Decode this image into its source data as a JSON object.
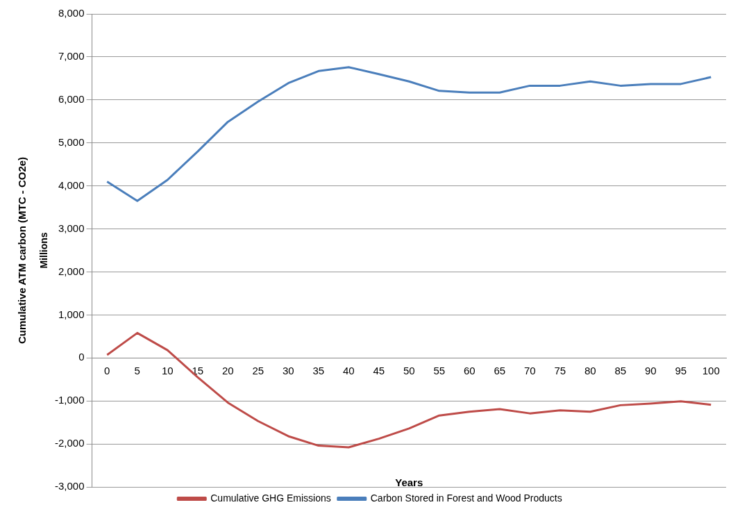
{
  "chart_data": {
    "type": "line",
    "xlabel": "Years",
    "ylabel": "Cumulative ATM carbon (MTC - CO2e)",
    "annotations": [
      "Millions"
    ],
    "categories": [
      "0",
      "5",
      "10",
      "15",
      "20",
      "25",
      "30",
      "35",
      "40",
      "45",
      "50",
      "55",
      "60",
      "65",
      "70",
      "75",
      "80",
      "85",
      "90",
      "95",
      "100"
    ],
    "series": [
      {
        "name": "Cumulative GHG Emissions",
        "color": "#be4b48",
        "values": [
          70,
          580,
          180,
          -450,
          -1040,
          -1470,
          -1820,
          -2040,
          -2080,
          -1880,
          -1640,
          -1340,
          -1250,
          -1190,
          -1290,
          -1220,
          -1250,
          -1100,
          -1060,
          -1010,
          -1090
        ]
      },
      {
        "name": "Carbon Stored in Forest and Wood Products",
        "color": "#4a7ebb",
        "values": [
          4100,
          3650,
          4140,
          4800,
          5490,
          5960,
          6390,
          6670,
          6760,
          6600,
          6430,
          6210,
          6170,
          6170,
          6330,
          6330,
          6430,
          6330,
          6370,
          6370,
          6530
        ]
      }
    ],
    "ylim": [
      -3000,
      8000
    ],
    "yticks": [
      {
        "value": -3000,
        "label": "-3,000"
      },
      {
        "value": -2000,
        "label": "-2,000"
      },
      {
        "value": -1000,
        "label": "-1,000"
      },
      0,
      {
        "value": 1000,
        "label": "1,000"
      },
      {
        "value": 2000,
        "label": "2,000"
      },
      {
        "value": 3000,
        "label": "3,000"
      },
      {
        "value": 4000,
        "label": "4,000"
      },
      {
        "value": 5000,
        "label": "5,000"
      },
      {
        "value": 6000,
        "label": "6,000"
      },
      {
        "value": 7000,
        "label": "7,000"
      },
      {
        "value": 8000,
        "label": "8,000"
      }
    ],
    "grid": "y",
    "legend": "bottom",
    "marker": "none",
    "line_style": "solid"
  }
}
